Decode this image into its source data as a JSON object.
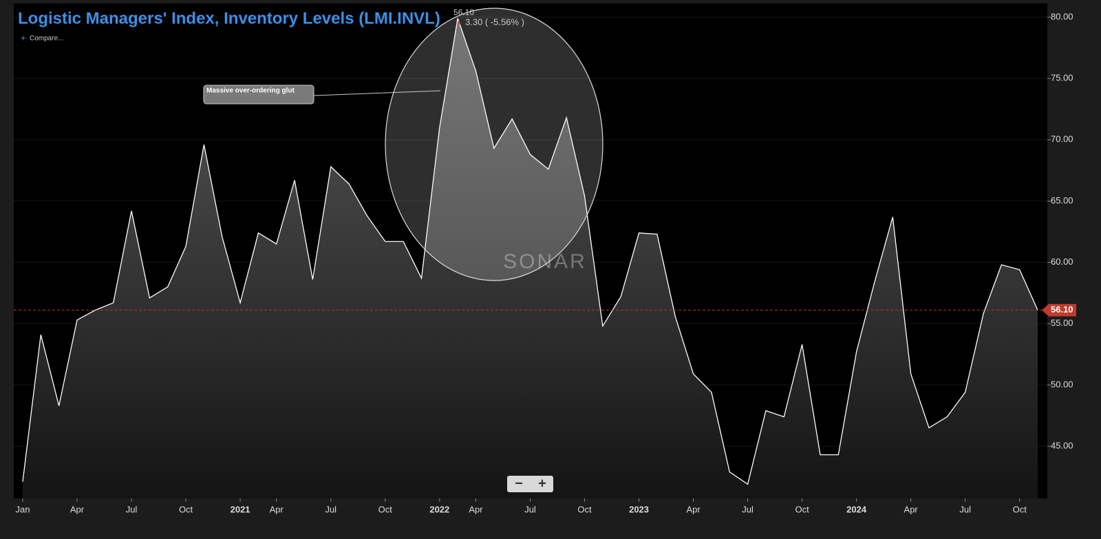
{
  "chart_data": {
    "type": "area",
    "title": "Logistic Managers' Index, Inventory Levels (LMI.INVL)",
    "compare": "Compare...",
    "watermark": "SONAR",
    "annotation": "Massive over-ordering glut",
    "tooltip": {
      "change": "3.30 ( -5.56% )"
    },
    "last_value": {
      "value": 56.1,
      "label": "56.10"
    },
    "categories": [
      "Jan",
      null,
      null,
      "Apr",
      null,
      null,
      "Jul",
      null,
      null,
      "Oct",
      null,
      null,
      "2021",
      null,
      "Apr",
      null,
      null,
      "Jul",
      null,
      null,
      "Oct",
      null,
      null,
      "2022",
      null,
      "Apr",
      null,
      null,
      "Jul",
      null,
      null,
      "Oct",
      null,
      null,
      "2023",
      null,
      null,
      "Apr",
      null,
      null,
      "Jul",
      null,
      null,
      "Oct",
      null,
      null,
      "2024",
      null,
      null,
      "Apr",
      null,
      null,
      "Jul",
      null,
      null,
      "Oct",
      null
    ],
    "series": [
      {
        "name": "LMI.INVL",
        "color": "#ffffff",
        "values": [
          42.1,
          54.1,
          48.3,
          55.3,
          56.1,
          56.7,
          64.2,
          57.1,
          58.0,
          61.3,
          69.6,
          62.1,
          56.7,
          62.4,
          61.5,
          66.7,
          58.6,
          67.8,
          66.4,
          63.8,
          61.7,
          61.7,
          58.7,
          71.0,
          79.9,
          75.6,
          69.3,
          71.7,
          68.8,
          67.6,
          71.8,
          65.4,
          54.8,
          57.2,
          62.4,
          62.3,
          55.6,
          50.9,
          49.4,
          42.9,
          41.9,
          47.9,
          47.4,
          53.3,
          44.3,
          44.3,
          52.7,
          58.4,
          63.7,
          50.9,
          46.5,
          47.4,
          49.4,
          55.8,
          59.8,
          59.4,
          56.1
        ]
      }
    ],
    "ylim": [
      40.74,
      81.12
    ],
    "yticks": [
      {
        "value": 45,
        "label": "45.00"
      },
      {
        "value": 50,
        "label": "50.00"
      },
      {
        "value": 55,
        "label": "55.00"
      },
      {
        "value": 60,
        "label": "60.00"
      },
      {
        "value": 65,
        "label": "65.00"
      },
      {
        "value": 70,
        "label": "70.00"
      },
      {
        "value": 75,
        "label": "75.00"
      },
      {
        "value": 80,
        "label": "80.00"
      }
    ],
    "reference_color": "#c0392b"
  }
}
